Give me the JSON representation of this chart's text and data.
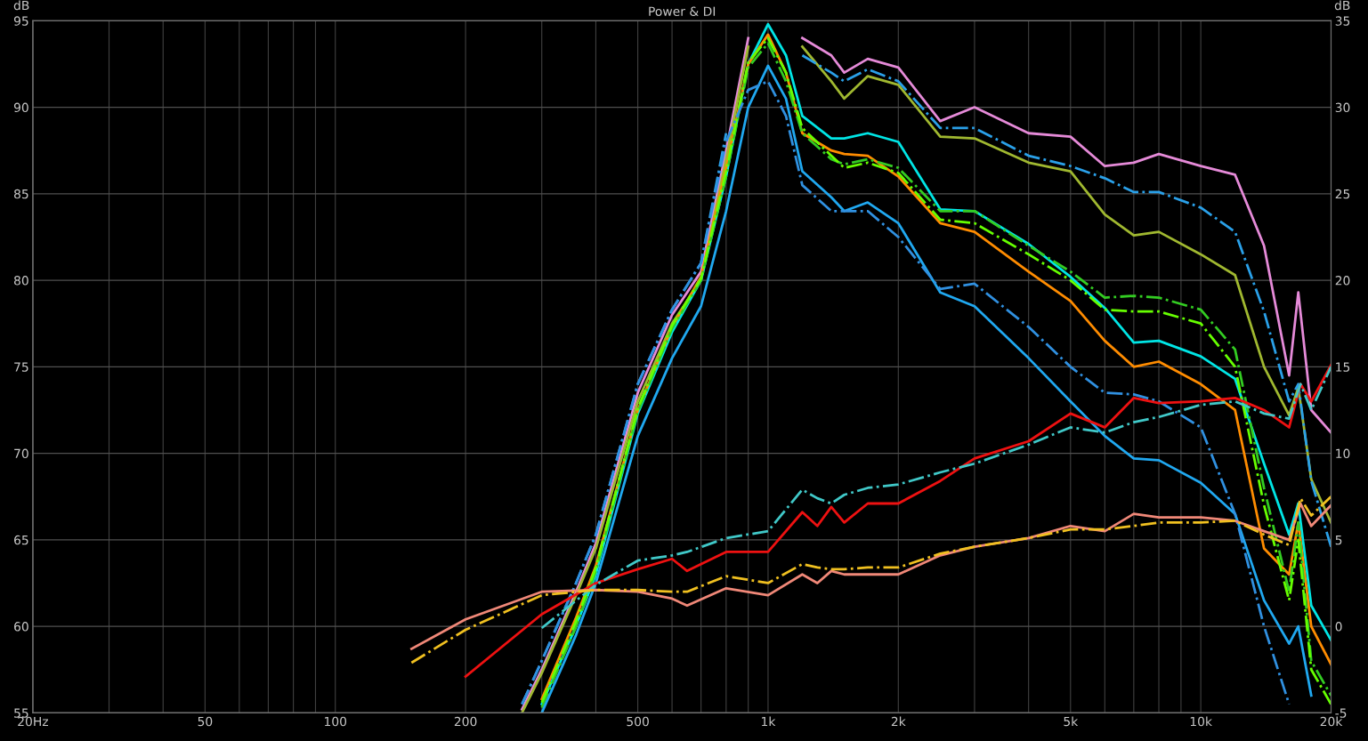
{
  "chart_data": {
    "type": "line",
    "title": "Power & DI",
    "ylabel": "dB",
    "y2label": "dB",
    "log": "x",
    "grid": true,
    "marker": "none",
    "xlim": [
      20,
      20000
    ],
    "ylim": [
      55,
      95
    ],
    "y2lim": [
      -5,
      35
    ],
    "xticks": [
      {
        "value": 20,
        "label": "20Hz"
      },
      {
        "value": 30,
        "label": null
      },
      {
        "value": 40,
        "label": null
      },
      50,
      {
        "value": 60,
        "label": null
      },
      {
        "value": 70,
        "label": null
      },
      {
        "value": 80,
        "label": null
      },
      {
        "value": 90,
        "label": null
      },
      100,
      200,
      {
        "value": 300,
        "label": null
      },
      {
        "value": 400,
        "label": null
      },
      500,
      {
        "value": 600,
        "label": null
      },
      {
        "value": 700,
        "label": null
      },
      {
        "value": 800,
        "label": null
      },
      {
        "value": 900,
        "label": null
      },
      {
        "value": 1000,
        "label": "1k"
      },
      {
        "value": 2000,
        "label": "2k"
      },
      {
        "value": 3000,
        "label": null
      },
      {
        "value": 4000,
        "label": null
      },
      {
        "value": 5000,
        "label": "5k"
      },
      {
        "value": 6000,
        "label": null
      },
      {
        "value": 7000,
        "label": null
      },
      {
        "value": 8000,
        "label": null
      },
      {
        "value": 9000,
        "label": null
      },
      {
        "value": 10000,
        "label": "10k"
      },
      {
        "value": 20000,
        "label": "20k"
      }
    ],
    "yticks": [
      55,
      60,
      65,
      70,
      75,
      80,
      85,
      90,
      95
    ],
    "y2ticks": [
      -5,
      0,
      5,
      10,
      15,
      20,
      25,
      30,
      35
    ],
    "series": [
      {
        "color": "#e58ad8",
        "line_style": "solid",
        "x": [
          270,
          300,
          360,
          400,
          500,
          600,
          700,
          800,
          900,
          1000,
          1100,
          1200,
          1400,
          1500,
          1700,
          2000,
          2500,
          3000,
          4000,
          5000,
          6000,
          7000,
          8000,
          10000,
          12000,
          14000,
          16000,
          16800,
          18000,
          20000
        ],
        "values": [
          55.2,
          57.5,
          62,
          64.8,
          73.5,
          78,
          80.5,
          87.5,
          94,
          null,
          null,
          94,
          93,
          92,
          92.8,
          92.3,
          89.2,
          90,
          88.5,
          88.3,
          86.6,
          86.8,
          87.3,
          86.6,
          86.1,
          82,
          74.5,
          79.3,
          72.5,
          71.2
        ]
      },
      {
        "color": "#a0b830",
        "line_style": "solid",
        "x": [
          270,
          300,
          360,
          400,
          500,
          600,
          700,
          800,
          900,
          1000,
          1100,
          1200,
          1400,
          1500,
          1700,
          2000,
          2500,
          3000,
          4000,
          5000,
          6000,
          7000,
          8000,
          10000,
          12000,
          14000,
          16000,
          16800,
          18000,
          20000
        ],
        "values": [
          55,
          57.3,
          61.8,
          64.5,
          73,
          77.5,
          80,
          87,
          93.5,
          null,
          null,
          93.5,
          91.5,
          90.5,
          91.8,
          91.3,
          88.3,
          88.2,
          86.8,
          86.3,
          83.8,
          82.6,
          82.8,
          81.5,
          80.3,
          75,
          72.2,
          73.8,
          68.5,
          66
        ]
      },
      {
        "color": "#2aa0e8",
        "line_style": "dashdot",
        "x": [
          270,
          300,
          360,
          400,
          500,
          600,
          700,
          800,
          900,
          1000,
          1100,
          1200,
          1400,
          1500,
          1700,
          2000,
          2500,
          3000,
          4000,
          5000,
          6000,
          7000,
          8000,
          10000,
          12000,
          14000,
          16000,
          16800,
          18000,
          20000
        ],
        "values": [
          55.5,
          58,
          62.5,
          65.3,
          74,
          78.3,
          81,
          88.5,
          null,
          null,
          null,
          93,
          92,
          91.5,
          92.2,
          91.5,
          88.8,
          88.8,
          87.2,
          86.6,
          85.9,
          85.1,
          85.1,
          84.2,
          82.8,
          78.2,
          73,
          74,
          68.4,
          64.6
        ]
      },
      {
        "color": "#00e5e5",
        "line_style": "solid",
        "x": [
          300,
          360,
          400,
          500,
          600,
          700,
          800,
          900,
          1000,
          1100,
          1200,
          1400,
          1500,
          1700,
          2000,
          2500,
          3000,
          4000,
          5000,
          6000,
          7000,
          8000,
          10000,
          12000,
          14000,
          16000,
          16800,
          18000,
          20000
        ],
        "values": [
          55.5,
          60,
          63,
          72.3,
          77,
          80,
          86,
          92.5,
          94.8,
          93,
          89.5,
          88.2,
          88.2,
          88.5,
          88,
          84.1,
          84,
          82.1,
          80.2,
          78.4,
          76.4,
          76.5,
          75.6,
          74.3,
          69.4,
          65.3,
          67.1,
          61.2,
          59.2
        ]
      },
      {
        "color": "#ff8c00",
        "line_style": "solid",
        "x": [
          300,
          360,
          400,
          500,
          600,
          700,
          800,
          900,
          1000,
          1100,
          1200,
          1400,
          1500,
          1700,
          2000,
          2500,
          3000,
          4000,
          5000,
          6000,
          7000,
          8000,
          10000,
          12000,
          14000,
          16000,
          16800,
          18000,
          20000
        ],
        "values": [
          55.8,
          60.5,
          63.5,
          72.5,
          77.3,
          80.2,
          86.5,
          92.5,
          94.2,
          92,
          88.5,
          87.5,
          87.3,
          87.2,
          86,
          83.3,
          82.8,
          80.5,
          78.8,
          76.5,
          75,
          75.3,
          74,
          72.5,
          64.5,
          63,
          66,
          60,
          57.8
        ]
      },
      {
        "color": "#33cc22",
        "line_style": "dashdot",
        "x": [
          300,
          360,
          400,
          500,
          600,
          700,
          800,
          900,
          1000,
          1100,
          1200,
          1400,
          1500,
          1700,
          2000,
          2500,
          3000,
          4000,
          5000,
          6000,
          7000,
          8000,
          10000,
          12000,
          14000,
          16000,
          16800,
          18000,
          20000
        ],
        "values": [
          55.3,
          60,
          63.2,
          72.4,
          77.2,
          80,
          86,
          92.3,
          93.7,
          91.5,
          88.5,
          87,
          86.7,
          87,
          86.5,
          84,
          84,
          82,
          80.5,
          79,
          79.1,
          79,
          78.3,
          76,
          68,
          62,
          66,
          58,
          56
        ]
      },
      {
        "color": "#66ff00",
        "line_style": "dashdot",
        "x": [
          300,
          360,
          400,
          500,
          600,
          700,
          800,
          900,
          1000,
          1100,
          1200,
          1400,
          1500,
          1700,
          2000,
          2500,
          3000,
          4000,
          5000,
          6000,
          7000,
          8000,
          10000,
          12000,
          14000,
          16000,
          16800,
          18000,
          20000
        ],
        "values": [
          55.6,
          60.3,
          63.4,
          72.6,
          77.4,
          80.1,
          86.3,
          92.6,
          94,
          92,
          88.8,
          87.2,
          86.5,
          86.8,
          86.2,
          83.5,
          83.3,
          81.5,
          80,
          78.3,
          78.2,
          78.2,
          77.5,
          75,
          67,
          61.5,
          65,
          57.5,
          55.5
        ]
      },
      {
        "color": "#20a8f0",
        "line_style": "solid",
        "x": [
          300,
          360,
          400,
          500,
          600,
          700,
          800,
          900,
          1000,
          1100,
          1200,
          1400,
          1500,
          1700,
          2000,
          2500,
          3000,
          4000,
          5000,
          6000,
          7000,
          8000,
          10000,
          12000,
          14000,
          16000,
          16800,
          18000
        ],
        "values": [
          55,
          59.5,
          62.5,
          71,
          75.5,
          78.5,
          84,
          90,
          92.4,
          90.5,
          86.3,
          84.8,
          84,
          84.5,
          83.3,
          79.3,
          78.5,
          75.5,
          73,
          71,
          69.7,
          69.6,
          68.3,
          66.5,
          61.5,
          59,
          60,
          56
        ]
      },
      {
        "color": "#3090e0",
        "line_style": "dashdot",
        "x": [
          270,
          300,
          360,
          400,
          500,
          600,
          700,
          800,
          900,
          1000,
          1100,
          1200,
          1400,
          1500,
          1700,
          2000,
          2500,
          3000,
          4000,
          5000,
          6000,
          7000,
          8000,
          10000,
          12000,
          14000,
          16000
        ],
        "values": [
          55.5,
          58,
          62.5,
          65.3,
          74,
          78.3,
          81,
          88,
          91,
          91.5,
          89.5,
          85.5,
          84,
          84,
          84,
          82.5,
          79.5,
          79.8,
          77.3,
          75,
          73.5,
          73.4,
          73,
          71.5,
          66.5,
          60,
          55.5
        ]
      },
      {
        "color": "#ee1111",
        "line_style": "solid",
        "axis": "y2",
        "x": [
          200,
          300,
          400,
          500,
          600,
          650,
          800,
          1000,
          1200,
          1300,
          1400,
          1500,
          1700,
          2000,
          2500,
          3000,
          4000,
          5000,
          6000,
          7000,
          8000,
          10000,
          12000,
          14000,
          16000,
          17000,
          18000,
          20000
        ],
        "values": [
          -2.9,
          0.7,
          2.5,
          3.3,
          3.9,
          3.2,
          4.3,
          4.3,
          6.6,
          5.8,
          6.9,
          6,
          7.1,
          7.1,
          8.4,
          9.7,
          10.7,
          12.3,
          11.5,
          13.2,
          12.9,
          13,
          13.2,
          12.5,
          11.5,
          14,
          13,
          15.1
        ]
      },
      {
        "color": "#40c8c8",
        "line_style": "dashdot",
        "axis": "y2",
        "x": [
          300,
          400,
          500,
          600,
          650,
          800,
          1000,
          1200,
          1300,
          1400,
          1500,
          1700,
          2000,
          2500,
          3000,
          4000,
          5000,
          6000,
          7000,
          8000,
          10000,
          12000,
          14000,
          16000,
          17000,
          18000,
          20000
        ],
        "values": [
          -0.1,
          2.4,
          3.8,
          4.1,
          4.3,
          5.1,
          5.5,
          7.9,
          7.4,
          7.1,
          7.6,
          8,
          8.2,
          8.9,
          9.4,
          10.5,
          11.5,
          11.2,
          11.8,
          12.1,
          12.8,
          13,
          12.3,
          12,
          14,
          12.5,
          15
        ]
      },
      {
        "color": "#f08878",
        "line_style": "solid",
        "axis": "y2",
        "x": [
          150,
          200,
          300,
          400,
          500,
          600,
          650,
          800,
          1000,
          1200,
          1300,
          1400,
          1500,
          1700,
          2000,
          2500,
          3000,
          4000,
          5000,
          6000,
          7000,
          8000,
          10000,
          12000,
          14000,
          16000,
          17000,
          18000,
          20000
        ],
        "values": [
          -1.3,
          0.4,
          2,
          2.1,
          2,
          1.6,
          1.2,
          2.2,
          1.8,
          3,
          2.5,
          3.2,
          3,
          3,
          3,
          4.1,
          4.6,
          5.1,
          5.8,
          5.5,
          6.5,
          6.3,
          6.3,
          6.1,
          5.5,
          5,
          7.1,
          5.8,
          7
        ]
      },
      {
        "color": "#f0c020",
        "line_style": "dashdot",
        "axis": "y2",
        "x": [
          150,
          200,
          300,
          400,
          500,
          600,
          650,
          800,
          1000,
          1200,
          1300,
          1400,
          1500,
          1700,
          2000,
          2500,
          3000,
          4000,
          5000,
          6000,
          7000,
          8000,
          10000,
          12000,
          14000,
          16000,
          17000,
          18000,
          20000
        ],
        "values": [
          -2.1,
          -0.2,
          1.8,
          2.1,
          2.1,
          2,
          2,
          2.9,
          2.5,
          3.6,
          3.4,
          3.3,
          3.3,
          3.4,
          3.4,
          4.2,
          4.6,
          5.1,
          5.6,
          5.6,
          5.8,
          6,
          6,
          6.1,
          5.3,
          4.7,
          7.4,
          6.4,
          7.5
        ]
      }
    ]
  }
}
